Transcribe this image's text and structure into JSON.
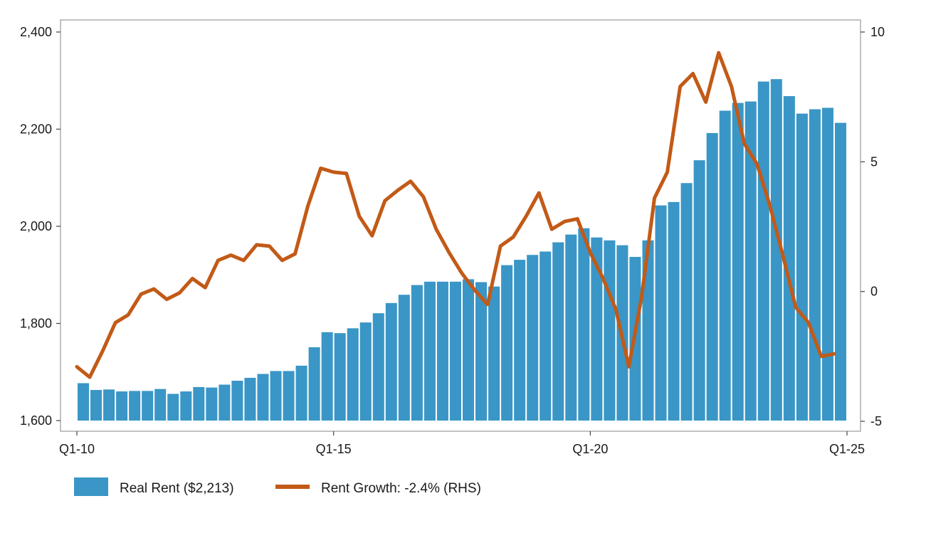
{
  "chart_data": {
    "type": "bar+line",
    "title": "",
    "xlabel": "",
    "ylabel": "",
    "x_ticks": [
      "Q1-10",
      "Q1-15",
      "Q1-20",
      "Q1-25"
    ],
    "y_left": {
      "range": [
        1600,
        2400
      ],
      "ticks": [
        1600,
        1800,
        2000,
        2200,
        2400
      ],
      "tick_labels": [
        "1,600",
        "1,800",
        "2,000",
        "2,200",
        "2,400"
      ]
    },
    "y_right": {
      "range": [
        -5,
        10
      ],
      "ticks": [
        -5,
        0,
        5,
        10
      ],
      "tick_labels": [
        "-5",
        "0",
        "5",
        "10"
      ]
    },
    "grid": false,
    "legend_position": "bottom-left",
    "categories": [
      "Q1-10",
      "Q2-10",
      "Q3-10",
      "Q4-10",
      "Q1-11",
      "Q2-11",
      "Q3-11",
      "Q4-11",
      "Q1-12",
      "Q2-12",
      "Q3-12",
      "Q4-12",
      "Q1-13",
      "Q2-13",
      "Q3-13",
      "Q4-13",
      "Q1-14",
      "Q2-14",
      "Q3-14",
      "Q4-14",
      "Q1-15",
      "Q2-15",
      "Q3-15",
      "Q4-15",
      "Q1-16",
      "Q2-16",
      "Q3-16",
      "Q4-16",
      "Q1-17",
      "Q2-17",
      "Q3-17",
      "Q4-17",
      "Q1-18",
      "Q2-18",
      "Q3-18",
      "Q4-18",
      "Q1-19",
      "Q2-19",
      "Q3-19",
      "Q4-19",
      "Q1-20",
      "Q2-20",
      "Q3-20",
      "Q4-20",
      "Q1-21",
      "Q2-21",
      "Q3-21",
      "Q4-21",
      "Q1-22",
      "Q2-22",
      "Q3-22",
      "Q4-22",
      "Q1-23",
      "Q2-23",
      "Q3-23",
      "Q4-23",
      "Q1-24",
      "Q2-24",
      "Q3-24",
      "Q4-24"
    ],
    "series": [
      {
        "name": "Real Rent ($2,213)",
        "type": "bar",
        "axis": "left",
        "color": "#3a96c6",
        "values": [
          1677,
          1663,
          1664,
          1660,
          1661,
          1661,
          1665,
          1655,
          1660,
          1669,
          1668,
          1674,
          1682,
          1688,
          1696,
          1702,
          1702,
          1713,
          1751,
          1782,
          1780,
          1790,
          1802,
          1821,
          1842,
          1859,
          1879,
          1886,
          1886,
          1886,
          1891,
          1885,
          1876,
          1920,
          1931,
          1941,
          1948,
          1967,
          1983,
          1996,
          1977,
          1971,
          1961,
          1937,
          1971,
          2043,
          2050,
          2089,
          2136,
          2192,
          2238,
          2254,
          2257,
          2298,
          2303,
          2268,
          2232,
          2241,
          2244,
          2213
        ]
      },
      {
        "name": "Rent Growth: -2.4% (RHS)",
        "type": "line",
        "axis": "right",
        "color": "#c25a17",
        "values": [
          -2.9,
          -3.3,
          -2.3,
          -1.2,
          -0.9,
          -0.1,
          0.1,
          -0.3,
          -0.05,
          0.5,
          0.15,
          1.2,
          1.4,
          1.2,
          1.8,
          1.75,
          1.2,
          1.45,
          3.3,
          4.75,
          4.6,
          4.55,
          2.9,
          2.15,
          3.5,
          3.9,
          4.25,
          3.65,
          2.4,
          1.5,
          0.7,
          0.05,
          -0.5,
          1.75,
          2.1,
          2.9,
          3.8,
          2.4,
          2.7,
          2.8,
          1.5,
          0.5,
          -0.7,
          -2.9,
          -0.2,
          3.6,
          4.6,
          7.9,
          8.4,
          7.3,
          9.2,
          7.9,
          5.7,
          4.9,
          3.3,
          1.4,
          -0.6,
          -1.2,
          -2.5,
          -2.4
        ]
      }
    ]
  }
}
